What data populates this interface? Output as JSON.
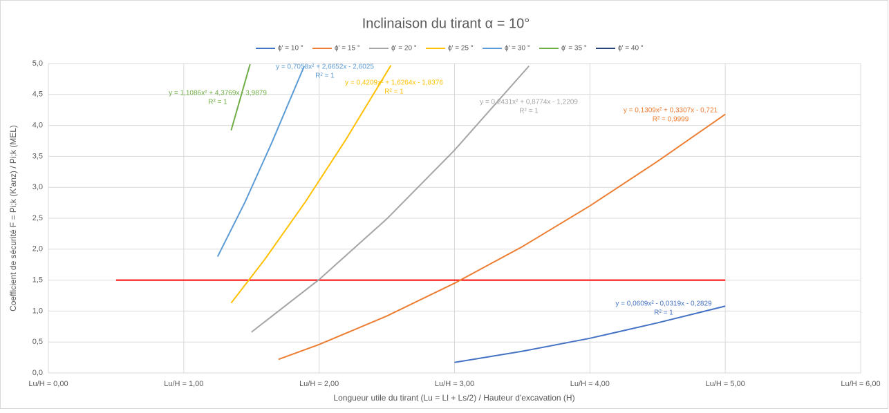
{
  "chart_data": {
    "type": "line",
    "title": "Inclinaison du tirant α = 10°",
    "x_label": "Longueur utile du tirant (Lu = Ll + Ls/2) / Hauteur d'excavation (H)",
    "y_label": "Coefficient de sécurité F = Pi;k (K'anz) / Pi;k (MEL)",
    "xlim": [
      0,
      6
    ],
    "ylim": [
      0,
      5
    ],
    "xticks": [
      {
        "value": 0,
        "label": "Lu/H = 0,00"
      },
      {
        "value": 1,
        "label": "Lu/H = 1,00"
      },
      {
        "value": 2,
        "label": "Lu/H = 2,00"
      },
      {
        "value": 3,
        "label": "Lu/H = 3,00"
      },
      {
        "value": 4,
        "label": "Lu/H = 4,00"
      },
      {
        "value": 5,
        "label": "Lu/H = 5,00"
      },
      {
        "value": 6,
        "label": "Lu/H = 6,00"
      }
    ],
    "yticks": [
      {
        "value": 0,
        "label": "0,0"
      },
      {
        "value": 0.5,
        "label": "0,5"
      },
      {
        "value": 1,
        "label": "1,0"
      },
      {
        "value": 1.5,
        "label": "1,5"
      },
      {
        "value": 2,
        "label": "2,0"
      },
      {
        "value": 2.5,
        "label": "2,5"
      },
      {
        "value": 3,
        "label": "3,0"
      },
      {
        "value": 3.5,
        "label": "3,5"
      },
      {
        "value": 4,
        "label": "4,0"
      },
      {
        "value": 4.5,
        "label": "4,5"
      },
      {
        "value": 5,
        "label": "5,0"
      }
    ],
    "grid": true,
    "legend": "top",
    "series": [
      {
        "name": "ϕ' = 10 °",
        "color": "#4472c4",
        "x": [
          3,
          3.5,
          4,
          4.5,
          5
        ],
        "values": [
          0.17,
          0.35,
          0.56,
          0.81,
          1.08
        ],
        "equation": "y = 0,0609x² - 0,0319x - 0,2829",
        "r_squared": "R² = 1"
      },
      {
        "name": "ϕ' = 15 °",
        "color": "#ed7d31",
        "x": [
          1.7,
          2,
          2.5,
          3,
          3.5,
          4,
          4.5,
          5
        ],
        "values": [
          0.22,
          0.46,
          0.92,
          1.45,
          2.04,
          2.7,
          3.42,
          4.18
        ],
        "equation": "y = 0,1309x² + 0,3307x - 0,721",
        "r_squared": "R² = 0,9999"
      },
      {
        "name": "ϕ' = 20 °",
        "color": "#a5a5a5",
        "x": [
          1.5,
          2,
          2.5,
          3,
          3.55
        ],
        "values": [
          0.66,
          1.51,
          2.49,
          3.6,
          4.96
        ],
        "equation": "y = 0,2431x² + 0,8774x - 1,2209",
        "r_squared": "R² = 1"
      },
      {
        "name": "ϕ' = 25 °",
        "color": "#ffc000",
        "x": [
          1.35,
          1.6,
          1.9,
          2.2,
          2.53
        ],
        "values": [
          1.13,
          1.84,
          2.77,
          3.78,
          4.97
        ],
        "equation": "y = 0,4209x² + 1,6264x - 1,8376",
        "r_squared": "R² = 1"
      },
      {
        "name": "ϕ' = 30 °",
        "color": "#5b9bd5",
        "x": [
          1.25,
          1.45,
          1.65,
          1.89
        ],
        "values": [
          1.88,
          2.75,
          3.72,
          4.96
        ],
        "equation": "y = 0,7058x² + 2,6652x - 2,6025",
        "r_squared": "R² = 1"
      },
      {
        "name": "ϕ' = 35 °",
        "color": "#70ad47",
        "x": [
          1.35,
          1.49
        ],
        "values": [
          3.92,
          4.99
        ],
        "equation": "y = 1,1086x² + 4,3769x - 3,9879",
        "r_squared": "R² = 1"
      },
      {
        "name": "ϕ' = 40 °",
        "color": "#264478",
        "x": [],
        "values": []
      }
    ],
    "reference_line": {
      "value": 1.5,
      "x": [
        0.5,
        5
      ],
      "color": "#ff0000"
    }
  }
}
